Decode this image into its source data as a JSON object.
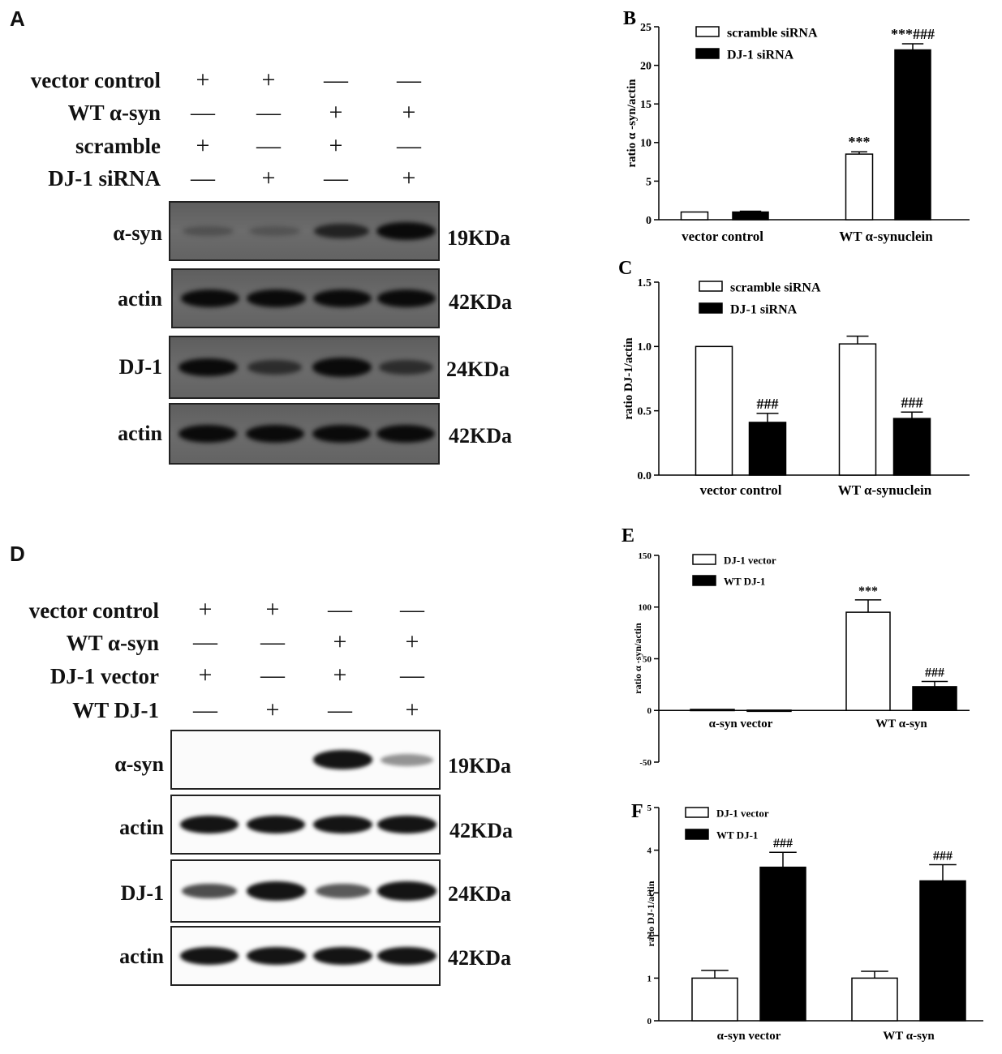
{
  "panelA": {
    "letter": "A",
    "conditions": [
      {
        "label": "vector control",
        "signs": [
          "+",
          "+",
          "—",
          "—"
        ]
      },
      {
        "label": "WT α-syn",
        "signs": [
          "—",
          "—",
          "+",
          "+"
        ]
      },
      {
        "label": "scramble",
        "signs": [
          "+",
          "—",
          "+",
          "—"
        ]
      },
      {
        "label": "DJ-1 siRNA",
        "signs": [
          "—",
          "+",
          "—",
          "+"
        ]
      }
    ],
    "blots": [
      {
        "label": "α-syn",
        "size": "19KDa",
        "intensities": [
          0.08,
          0.05,
          0.55,
          0.9
        ]
      },
      {
        "label": "actin",
        "size": "42KDa",
        "intensities": [
          0.85,
          0.85,
          0.85,
          0.8
        ]
      },
      {
        "label": "DJ-1",
        "size": "24KDa",
        "intensities": [
          0.9,
          0.45,
          0.95,
          0.45
        ]
      },
      {
        "label": "actin",
        "size": "42KDa",
        "intensities": [
          0.85,
          0.85,
          0.85,
          0.85
        ]
      }
    ]
  },
  "panelD": {
    "letter": "D",
    "conditions": [
      {
        "label": "vector control",
        "signs": [
          "+",
          "+",
          "—",
          "—"
        ]
      },
      {
        "label": "WT α-syn",
        "signs": [
          "—",
          "—",
          "+",
          "+"
        ]
      },
      {
        "label": "DJ-1 vector",
        "signs": [
          "+",
          "—",
          "+",
          "—"
        ]
      },
      {
        "label": "WT DJ-1",
        "signs": [
          "—",
          "+",
          "—",
          "+"
        ]
      }
    ],
    "blots": [
      {
        "label": "α-syn",
        "size": "19KDa",
        "intensities": [
          0.0,
          0.0,
          0.95,
          0.25
        ]
      },
      {
        "label": "actin",
        "size": "42KDa",
        "intensities": [
          0.9,
          0.85,
          0.85,
          0.85
        ]
      },
      {
        "label": "DJ-1",
        "size": "24KDa",
        "intensities": [
          0.55,
          0.95,
          0.5,
          0.95
        ]
      },
      {
        "label": "actin",
        "size": "42KDa",
        "intensities": [
          0.9,
          0.9,
          0.9,
          0.9
        ]
      }
    ]
  },
  "chart_data": [
    {
      "panel": "B",
      "type": "bar",
      "ylabel": "ratio α -syn/actin",
      "categories": [
        "vector control",
        "WT α-synuclein"
      ],
      "ylim": [
        0,
        25
      ],
      "yticks": [
        0,
        5,
        10,
        15,
        20,
        25
      ],
      "legend": "top-left",
      "series": [
        {
          "name": "scramble siRNA",
          "fill": "#ffffff",
          "values": [
            1.0,
            8.5
          ],
          "errors": [
            0,
            0.3
          ],
          "marks": [
            "",
            "***"
          ]
        },
        {
          "name": "DJ-1 siRNA",
          "fill": "#000000",
          "values": [
            1.0,
            22.0
          ],
          "errors": [
            0.1,
            0.8
          ],
          "marks": [
            "",
            "***###"
          ]
        }
      ]
    },
    {
      "panel": "C",
      "type": "bar",
      "ylabel": "ratio DJ-1/actin",
      "categories": [
        "vector control",
        "WT α-synuclein"
      ],
      "ylim": [
        0,
        1.5
      ],
      "yticks": [
        "0.0",
        "0.5",
        "1.0",
        "1.5"
      ],
      "legend": "top-left",
      "series": [
        {
          "name": "scramble siRNA",
          "fill": "#ffffff",
          "values": [
            1.0,
            1.02
          ],
          "errors": [
            0,
            0.06
          ],
          "marks": [
            "",
            ""
          ]
        },
        {
          "name": "DJ-1 siRNA",
          "fill": "#000000",
          "values": [
            0.41,
            0.44
          ],
          "errors": [
            0.07,
            0.05
          ],
          "marks": [
            "###",
            "###"
          ]
        }
      ]
    },
    {
      "panel": "E",
      "type": "bar",
      "ylabel": "ratio α -syn/actin",
      "categories": [
        "α-syn vector",
        "WT α-syn"
      ],
      "ylim": [
        -50,
        150
      ],
      "yticks": [
        -50,
        0,
        50,
        100,
        150
      ],
      "legend": "top-left",
      "series": [
        {
          "name": "DJ-1 vector",
          "fill": "#ffffff",
          "values": [
            1.0,
            95.0
          ],
          "errors": [
            0,
            12
          ],
          "marks": [
            "",
            "***"
          ]
        },
        {
          "name": "WT DJ-1",
          "fill": "#000000",
          "values": [
            0.3,
            23.0
          ],
          "errors": [
            0,
            5
          ],
          "marks": [
            "",
            "###"
          ]
        }
      ]
    },
    {
      "panel": "F",
      "type": "bar",
      "ylabel": "ratio DJ-1/actin",
      "categories": [
        "α-syn vector",
        "WT α-syn"
      ],
      "ylim": [
        0,
        5
      ],
      "yticks": [
        0,
        1,
        2,
        3,
        4,
        5
      ],
      "legend": "top-left",
      "series": [
        {
          "name": "DJ-1 vector",
          "fill": "#ffffff",
          "values": [
            1.0,
            1.0
          ],
          "errors": [
            0.18,
            0.16
          ],
          "marks": [
            "",
            ""
          ]
        },
        {
          "name": "WT DJ-1",
          "fill": "#000000",
          "values": [
            3.6,
            3.28
          ],
          "errors": [
            0.35,
            0.38
          ],
          "marks": [
            "###",
            "###"
          ]
        }
      ]
    }
  ]
}
